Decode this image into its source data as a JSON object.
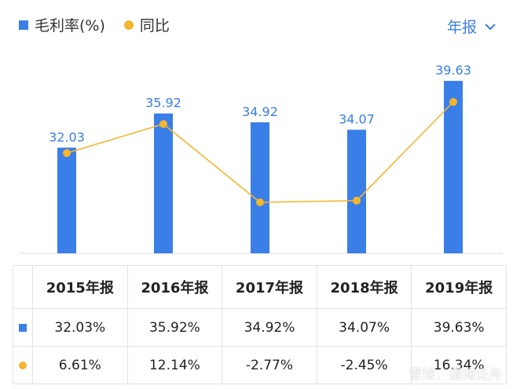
{
  "legend": {
    "bar_label": "毛利率(%)",
    "line_label": "同比"
  },
  "period_selector": {
    "label": "年报"
  },
  "colors": {
    "bar": "#3a7ee8",
    "line": "#f5b52f",
    "positive": "#e04b4b",
    "negative": "#2aa35c"
  },
  "chart_data": {
    "type": "bar",
    "categories": [
      "2015年报",
      "2016年报",
      "2017年报",
      "2018年报",
      "2019年报"
    ],
    "series": [
      {
        "name": "毛利率(%)",
        "type": "bar",
        "values": [
          32.03,
          35.92,
          34.92,
          34.07,
          39.63
        ]
      },
      {
        "name": "同比",
        "type": "line",
        "values": [
          6.61,
          12.14,
          -2.77,
          -2.45,
          16.34
        ]
      }
    ],
    "bar_data_labels": [
      "32.03",
      "35.92",
      "34.92",
      "34.07",
      "39.63"
    ],
    "legend_position": "top-left",
    "grid": false
  },
  "table": {
    "headers": [
      "2015年报",
      "2016年报",
      "2017年报",
      "2018年报",
      "2019年报"
    ],
    "rows": [
      {
        "marker": "bar",
        "cells": [
          "32.03%",
          "35.92%",
          "34.92%",
          "34.07%",
          "39.63%"
        ]
      },
      {
        "marker": "line",
        "cells": [
          "6.61%",
          "12.14%",
          "-2.77%",
          "-2.45%",
          "16.34%"
        ]
      }
    ]
  },
  "watermark": "雪球：湎海泛舟"
}
